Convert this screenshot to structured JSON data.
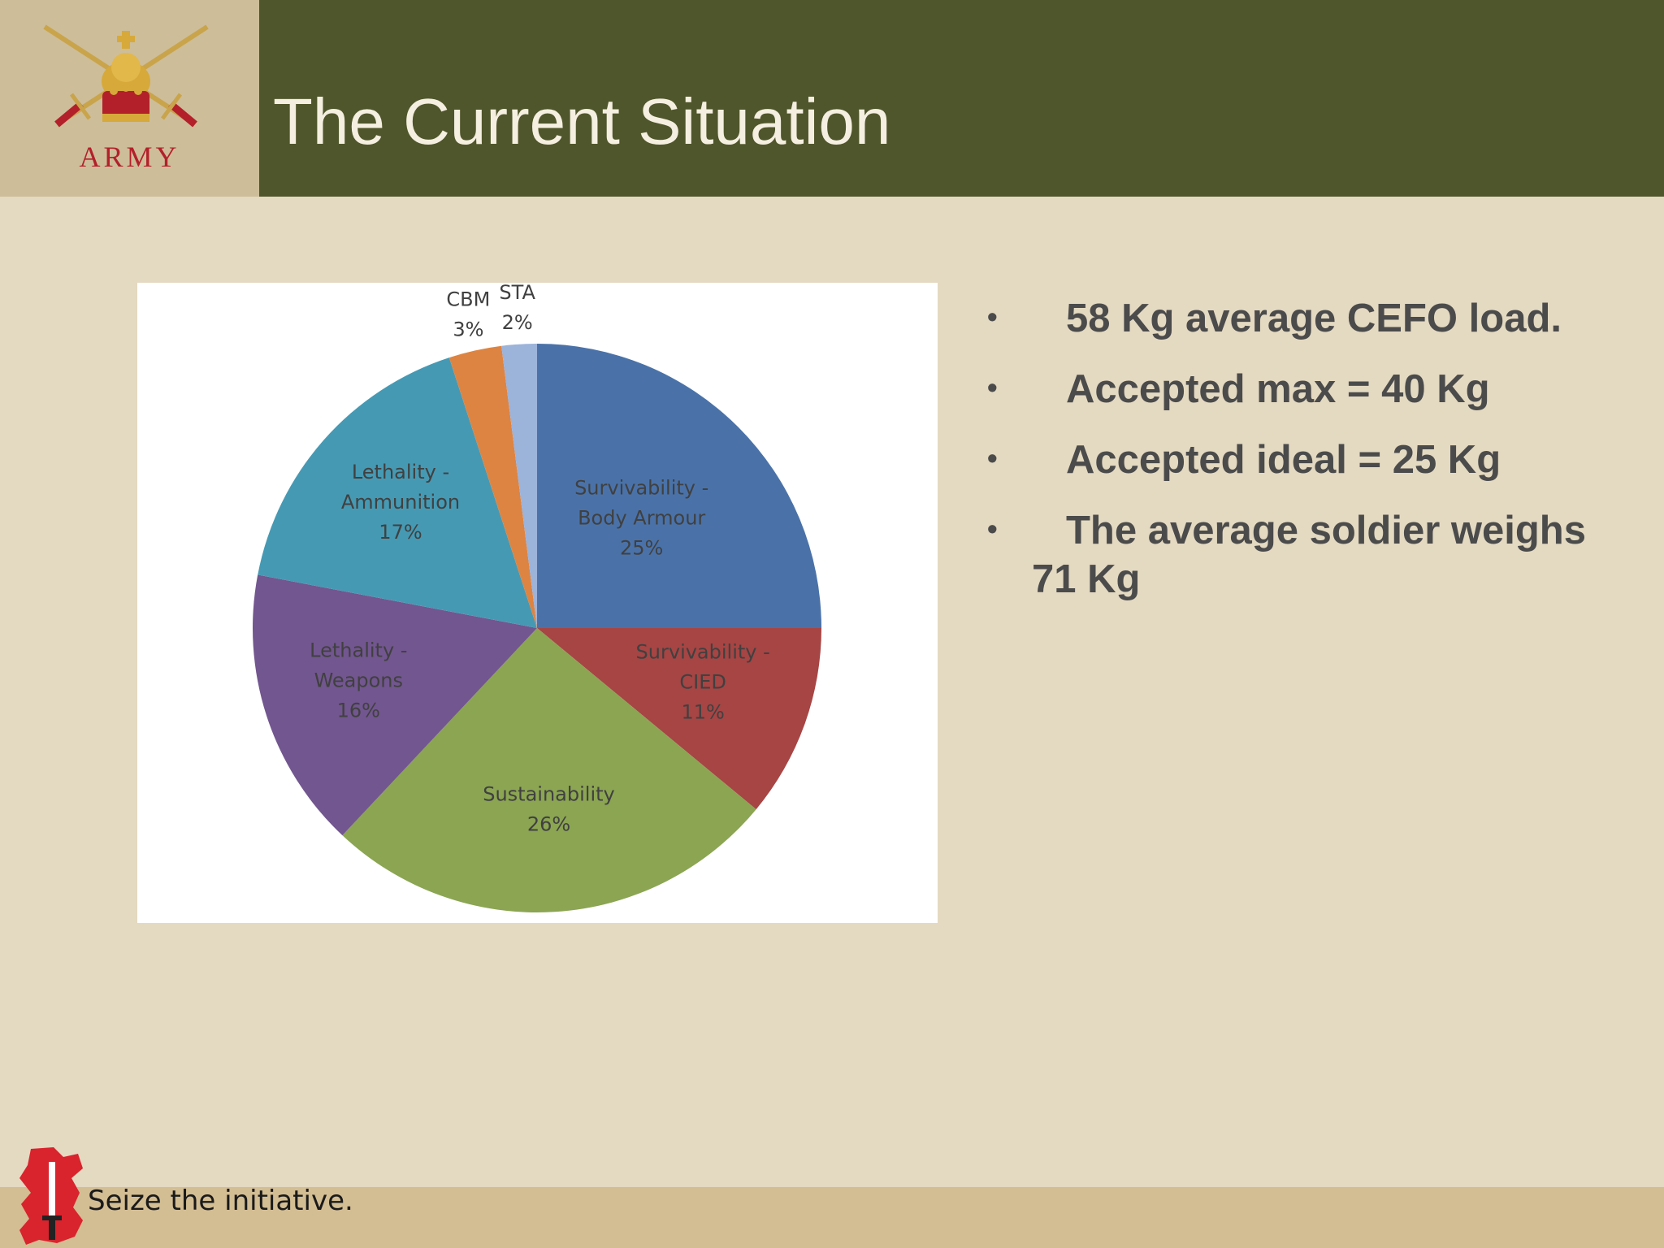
{
  "slide": {
    "title": "The Current Situation",
    "logo_text": "ARMY",
    "footer_slogan": "Seize the initiative."
  },
  "bullets": [
    "58 Kg average CEFO load.",
    "Accepted max = 40 Kg",
    "Accepted ideal = 25 Kg",
    "The average soldier weighs 71 Kg"
  ],
  "icons": {
    "logo": "army-crest-icon",
    "footer": "wales-map-dagger-icon",
    "bullet": "•"
  },
  "colors": {
    "title_bar": "#50562b",
    "logo_red": "#b3202a"
  },
  "chart_data": {
    "type": "pie",
    "slices": [
      {
        "label_lines": [
          "Survivability -",
          "Body Armour"
        ],
        "pct_text": "25%",
        "value": 25,
        "color": "#4a72a8"
      },
      {
        "label_lines": [
          "Survivability -",
          "CIED"
        ],
        "pct_text": "11%",
        "value": 11,
        "color": "#a64544"
      },
      {
        "label_lines": [
          "Sustainability"
        ],
        "pct_text": "26%",
        "value": 26,
        "color": "#8ba552"
      },
      {
        "label_lines": [
          "Lethality -",
          "Weapons"
        ],
        "pct_text": "16%",
        "value": 16,
        "color": "#72568f"
      },
      {
        "label_lines": [
          "Lethality -",
          "Ammunition"
        ],
        "pct_text": "17%",
        "value": 17,
        "color": "#4699b3"
      },
      {
        "label_lines": [
          "CBM"
        ],
        "pct_text": "3%",
        "value": 3,
        "color": "#dd8442"
      },
      {
        "label_lines": [
          "STA"
        ],
        "pct_text": "2%",
        "value": 2,
        "color": "#9cb3da"
      }
    ]
  }
}
